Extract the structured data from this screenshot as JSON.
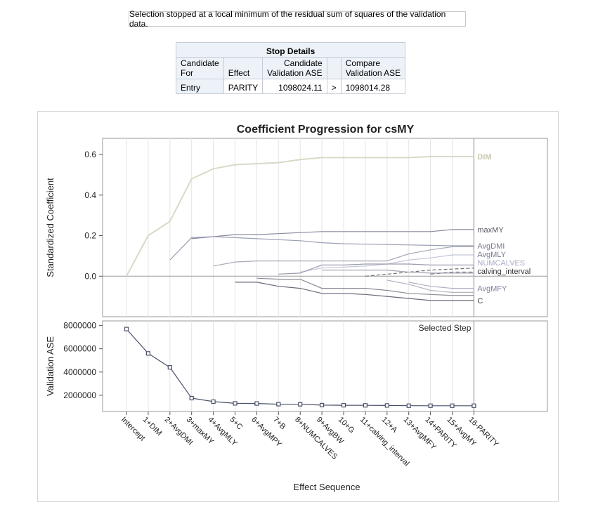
{
  "note": "Selection stopped at a local minimum of the residual sum of squares of the validation data.",
  "stop_details": {
    "caption": "Stop Details",
    "headers": {
      "candidate_for": [
        "Candidate",
        "For"
      ],
      "effect": "Effect",
      "candidate_ase": [
        "Candidate",
        "Validation ASE"
      ],
      "compare_ase": [
        "Compare",
        "Validation ASE"
      ]
    },
    "row": {
      "candidate_for": "Entry",
      "effect": "PARITY",
      "candidate_ase": "1098024.11",
      "comparison": ">",
      "compare_ase": "1098014.28"
    }
  },
  "chart_data": {
    "title": "Coefficient Progression for csMY",
    "xlabel": "Effect Sequence",
    "steps": [
      "Intercept",
      "1+DIM",
      "2+AvgDMI",
      "3+maxMY",
      "4+AvgMLY",
      "5+C",
      "6+AvgMPY",
      "7+B",
      "8+NUMCALVES",
      "9+AvgBW",
      "10+G",
      "11+calving_interval",
      "12+A",
      "13+AvgMFY",
      "14+PARITY",
      "15+AvgMY",
      "16-PARITY"
    ],
    "selected_step_label": "Selected Step",
    "selected_step_index": 16,
    "coefficient_panel": {
      "type": "line",
      "ylabel": "Standardized Coefficient",
      "ylim": [
        -0.2,
        0.68
      ],
      "yticks": [
        0.0,
        0.2,
        0.4,
        0.6
      ],
      "tick_labels": [
        "0.0",
        "0.2",
        "0.4",
        "0.6"
      ],
      "series": [
        {
          "name": "DIM",
          "color": "#d9d9c8",
          "width": 2,
          "label_color": "#c9c9b0",
          "label_bold": true,
          "values": [
            0,
            0.2,
            0.27,
            0.48,
            0.53,
            0.55,
            0.555,
            0.56,
            0.575,
            0.585,
            0.585,
            0.585,
            0.585,
            0.585,
            0.59,
            0.59,
            0.59
          ]
        },
        {
          "name": "maxMY",
          "color": "#8a8aa0",
          "label_color": "#555566",
          "values": [
            null,
            null,
            null,
            0.185,
            0.195,
            0.205,
            0.205,
            0.21,
            0.215,
            0.22,
            0.22,
            0.22,
            0.22,
            0.22,
            0.22,
            0.23,
            0.23
          ]
        },
        {
          "name": "AvgDMI",
          "color": "#9aa0b4",
          "label_color": "#7a7a90",
          "values": [
            null,
            null,
            0.08,
            0.19,
            0.195,
            0.19,
            0.185,
            0.18,
            0.175,
            0.165,
            0.16,
            0.158,
            0.156,
            0.154,
            0.152,
            0.15,
            0.15
          ]
        },
        {
          "name": "AvgMLY",
          "color": "#aaaab8",
          "label_color": "#7a7a90",
          "values": [
            null,
            null,
            null,
            null,
            0.05,
            0.07,
            0.075,
            0.075,
            0.075,
            0.075,
            0.075,
            0.075,
            0.075,
            0.11,
            0.13,
            0.145,
            0.145
          ]
        },
        {
          "name": "NUMCALVES",
          "color": "#c0c4d8",
          "label_color": "#a8acc8",
          "values": [
            null,
            null,
            null,
            null,
            null,
            null,
            null,
            null,
            0.02,
            0.04,
            0.045,
            0.05,
            0.06,
            0.08,
            0.09,
            0.105,
            0.105
          ]
        },
        {
          "name": "calving_interval",
          "color": "#707070",
          "dash": "5,3",
          "label_color": "#333333",
          "values": [
            null,
            null,
            null,
            null,
            null,
            null,
            null,
            null,
            null,
            null,
            null,
            0.0,
            0.01,
            0.02,
            0.03,
            0.035,
            0.04
          ]
        },
        {
          "name": "AvgMFY",
          "color": "#b0b0c4",
          "label_color": "#8080a0",
          "values": [
            null,
            null,
            null,
            null,
            null,
            null,
            null,
            null,
            null,
            null,
            null,
            null,
            null,
            -0.03,
            -0.05,
            -0.06,
            -0.06
          ]
        },
        {
          "name": "C",
          "color": "#6a6a78",
          "label_color": "#444444",
          "values": [
            null,
            null,
            null,
            null,
            null,
            -0.03,
            -0.03,
            -0.05,
            -0.06,
            -0.085,
            -0.085,
            -0.09,
            -0.1,
            -0.11,
            -0.12,
            -0.12,
            -0.12
          ]
        },
        {
          "name": "",
          "color": "#8c8c98",
          "values": [
            null,
            null,
            null,
            null,
            null,
            null,
            -0.01,
            -0.015,
            -0.015,
            -0.06,
            -0.06,
            -0.06,
            -0.07,
            -0.085,
            -0.09,
            -0.095,
            -0.095
          ]
        },
        {
          "name": "",
          "color": "#9c9cac",
          "values": [
            null,
            null,
            null,
            null,
            null,
            null,
            null,
            0.01,
            0.015,
            0.055,
            0.055,
            0.06,
            0.06,
            0.06,
            0.055,
            0.055,
            0.055
          ]
        },
        {
          "name": "",
          "color": "#a4a4b0",
          "values": [
            null,
            null,
            null,
            null,
            null,
            null,
            null,
            null,
            null,
            0.03,
            0.03,
            0.03,
            0.03,
            0.02,
            0.015,
            0.015,
            0.015
          ]
        },
        {
          "name": "",
          "color": "#b4b4c2",
          "values": [
            null,
            null,
            null,
            null,
            null,
            null,
            null,
            null,
            null,
            null,
            null,
            null,
            -0.02,
            -0.04,
            -0.07,
            -0.08,
            -0.08
          ]
        },
        {
          "name": "",
          "color": "#7c7c8a",
          "dash": "6,3",
          "values": [
            null,
            null,
            null,
            null,
            null,
            null,
            null,
            null,
            null,
            null,
            null,
            null,
            null,
            null,
            0.01,
            0.02,
            0.02
          ]
        }
      ]
    },
    "ase_panel": {
      "type": "line",
      "ylabel": "Validation ASE",
      "ylim": [
        600000,
        8400000
      ],
      "yticks": [
        2000000,
        4000000,
        6000000,
        8000000
      ],
      "tick_labels": [
        "2000000",
        "4000000",
        "6000000",
        "8000000"
      ],
      "color": "#4a5068",
      "values": [
        7700000,
        5600000,
        4400000,
        1750000,
        1450000,
        1300000,
        1290000,
        1230000,
        1220000,
        1150000,
        1140000,
        1130000,
        1120000,
        1100000,
        1098014,
        1098014,
        1098024
      ]
    }
  }
}
